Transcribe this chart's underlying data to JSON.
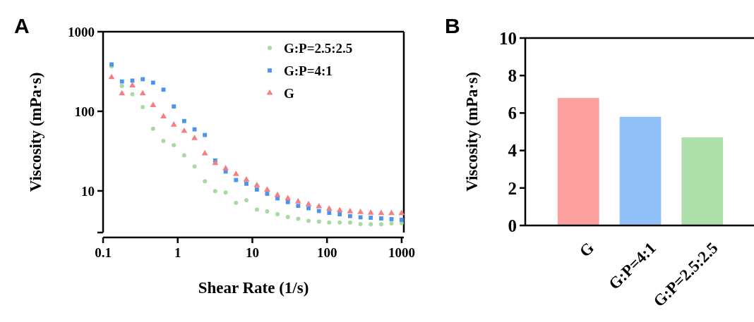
{
  "chart_data": [
    {
      "type": "scatter",
      "xlabel": "Shear Rate (1/s)",
      "ylabel": "Viscosity (mPa·s)",
      "annotations": [
        "A"
      ],
      "log": "xy",
      "legend": "top right",
      "x": [
        0.13,
        0.179,
        0.247,
        0.34,
        0.468,
        0.644,
        0.887,
        1.22,
        1.68,
        2.31,
        3.18,
        4.39,
        6.04,
        8.32,
        11.5,
        15.8,
        21.7,
        29.9,
        41.1,
        56.6,
        78,
        107,
        148,
        204,
        281,
        386,
        532,
        731,
        1000
      ],
      "xlim": [
        0.1,
        1070
      ],
      "xticks": [
        0.1,
        1,
        10,
        100,
        1000
      ],
      "ylim": [
        3,
        1000
      ],
      "yticks": [
        {
          "value": 3,
          "label": null
        },
        10,
        100,
        1000
      ],
      "series": [
        {
          "name": "G:P=2.5:2.5",
          "color": "#a6dba0",
          "marker": "circle",
          "values": [
            368,
            208,
            164,
            113,
            60.4,
            42.5,
            37.6,
            28,
            20.3,
            13.2,
            9.93,
            9.55,
            7.08,
            7.64,
            5.82,
            5.52,
            5.09,
            4.69,
            4.47,
            4.21,
            4.12,
            4.02,
            4.02,
            4.02,
            3.83,
            3.81,
            3.81,
            3.91,
            3.93
          ]
        },
        {
          "name": "G:P=4:1",
          "color": "#4a94f0",
          "marker": "square",
          "values": [
            388,
            237,
            243,
            253,
            229,
            187,
            115,
            75.5,
            59.3,
            50.4,
            24.1,
            17.5,
            13.7,
            12.3,
            10.4,
            9.2,
            8.05,
            7.23,
            6.49,
            6.06,
            5.59,
            5.3,
            5.09,
            4.82,
            4.66,
            4.6,
            4.51,
            4.42,
            4.33
          ]
        },
        {
          "name": "G",
          "color": "#f47f7f",
          "marker": "triangle",
          "values": [
            267,
            167,
            211,
            167,
            119,
            85.9,
            67.7,
            56.4,
            45.8,
            29.5,
            22.2,
            19.1,
            16.2,
            13.8,
            11.7,
            10.3,
            8.85,
            8.05,
            7.33,
            6.76,
            6.37,
            5.94,
            5.7,
            5.52,
            5.41,
            5.3,
            5.23,
            5.23,
            5.23
          ]
        }
      ]
    },
    {
      "type": "bar",
      "ylabel": "Viscosity (mPa·s)",
      "annotations": [
        "B"
      ],
      "categories": [
        "G",
        "G:P=4:1",
        "G:P=2.5:2.5"
      ],
      "values": [
        6.8,
        5.8,
        4.7
      ],
      "colors": [
        "#fc9f9f",
        "#91bff8",
        "#addfab"
      ],
      "ylim": [
        0,
        10
      ],
      "yticks": [
        0,
        2,
        4,
        6,
        8,
        10
      ]
    }
  ]
}
